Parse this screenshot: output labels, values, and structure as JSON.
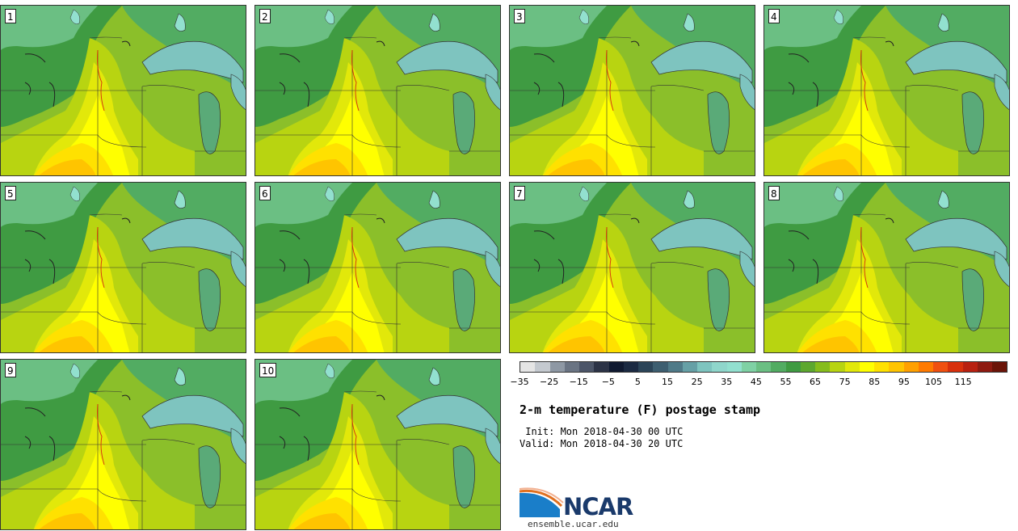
{
  "title": "2-m temperature (F) postage stamp",
  "init": " Init: Mon 2018-04-30 00 UTC",
  "valid": "Valid: Mon 2018-04-30 20 UTC",
  "logo_text": "NCAR",
  "site": "ensemble.ucar.edu",
  "members": [
    "1",
    "2",
    "3",
    "4",
    "5",
    "6",
    "7",
    "8",
    "9",
    "10"
  ],
  "colorbar": {
    "ticks": [
      "−35",
      "−25",
      "−15",
      "−5",
      "5",
      "15",
      "25",
      "35",
      "45",
      "55",
      "65",
      "75",
      "85",
      "95",
      "105",
      "115"
    ],
    "colors": [
      "#e5e5e5",
      "#c4c9cf",
      "#8e98a4",
      "#6a7483",
      "#4c5568",
      "#2c3346",
      "#0f1930",
      "#1b2a42",
      "#2b4458",
      "#3d5e70",
      "#4f7a88",
      "#66a0a6",
      "#7ec4bf",
      "#8fd6cb",
      "#92e0cf",
      "#7fd1a4",
      "#6bbf83",
      "#52ac62",
      "#3f9b42",
      "#5da82f",
      "#86bd1c",
      "#b8d411",
      "#e2e80a",
      "#ffff00",
      "#ffe100",
      "#ffc400",
      "#ffa000",
      "#ff7a00",
      "#f05010",
      "#d8300c",
      "#b82010",
      "#8e1a10",
      "#6b1408"
    ]
  }
}
